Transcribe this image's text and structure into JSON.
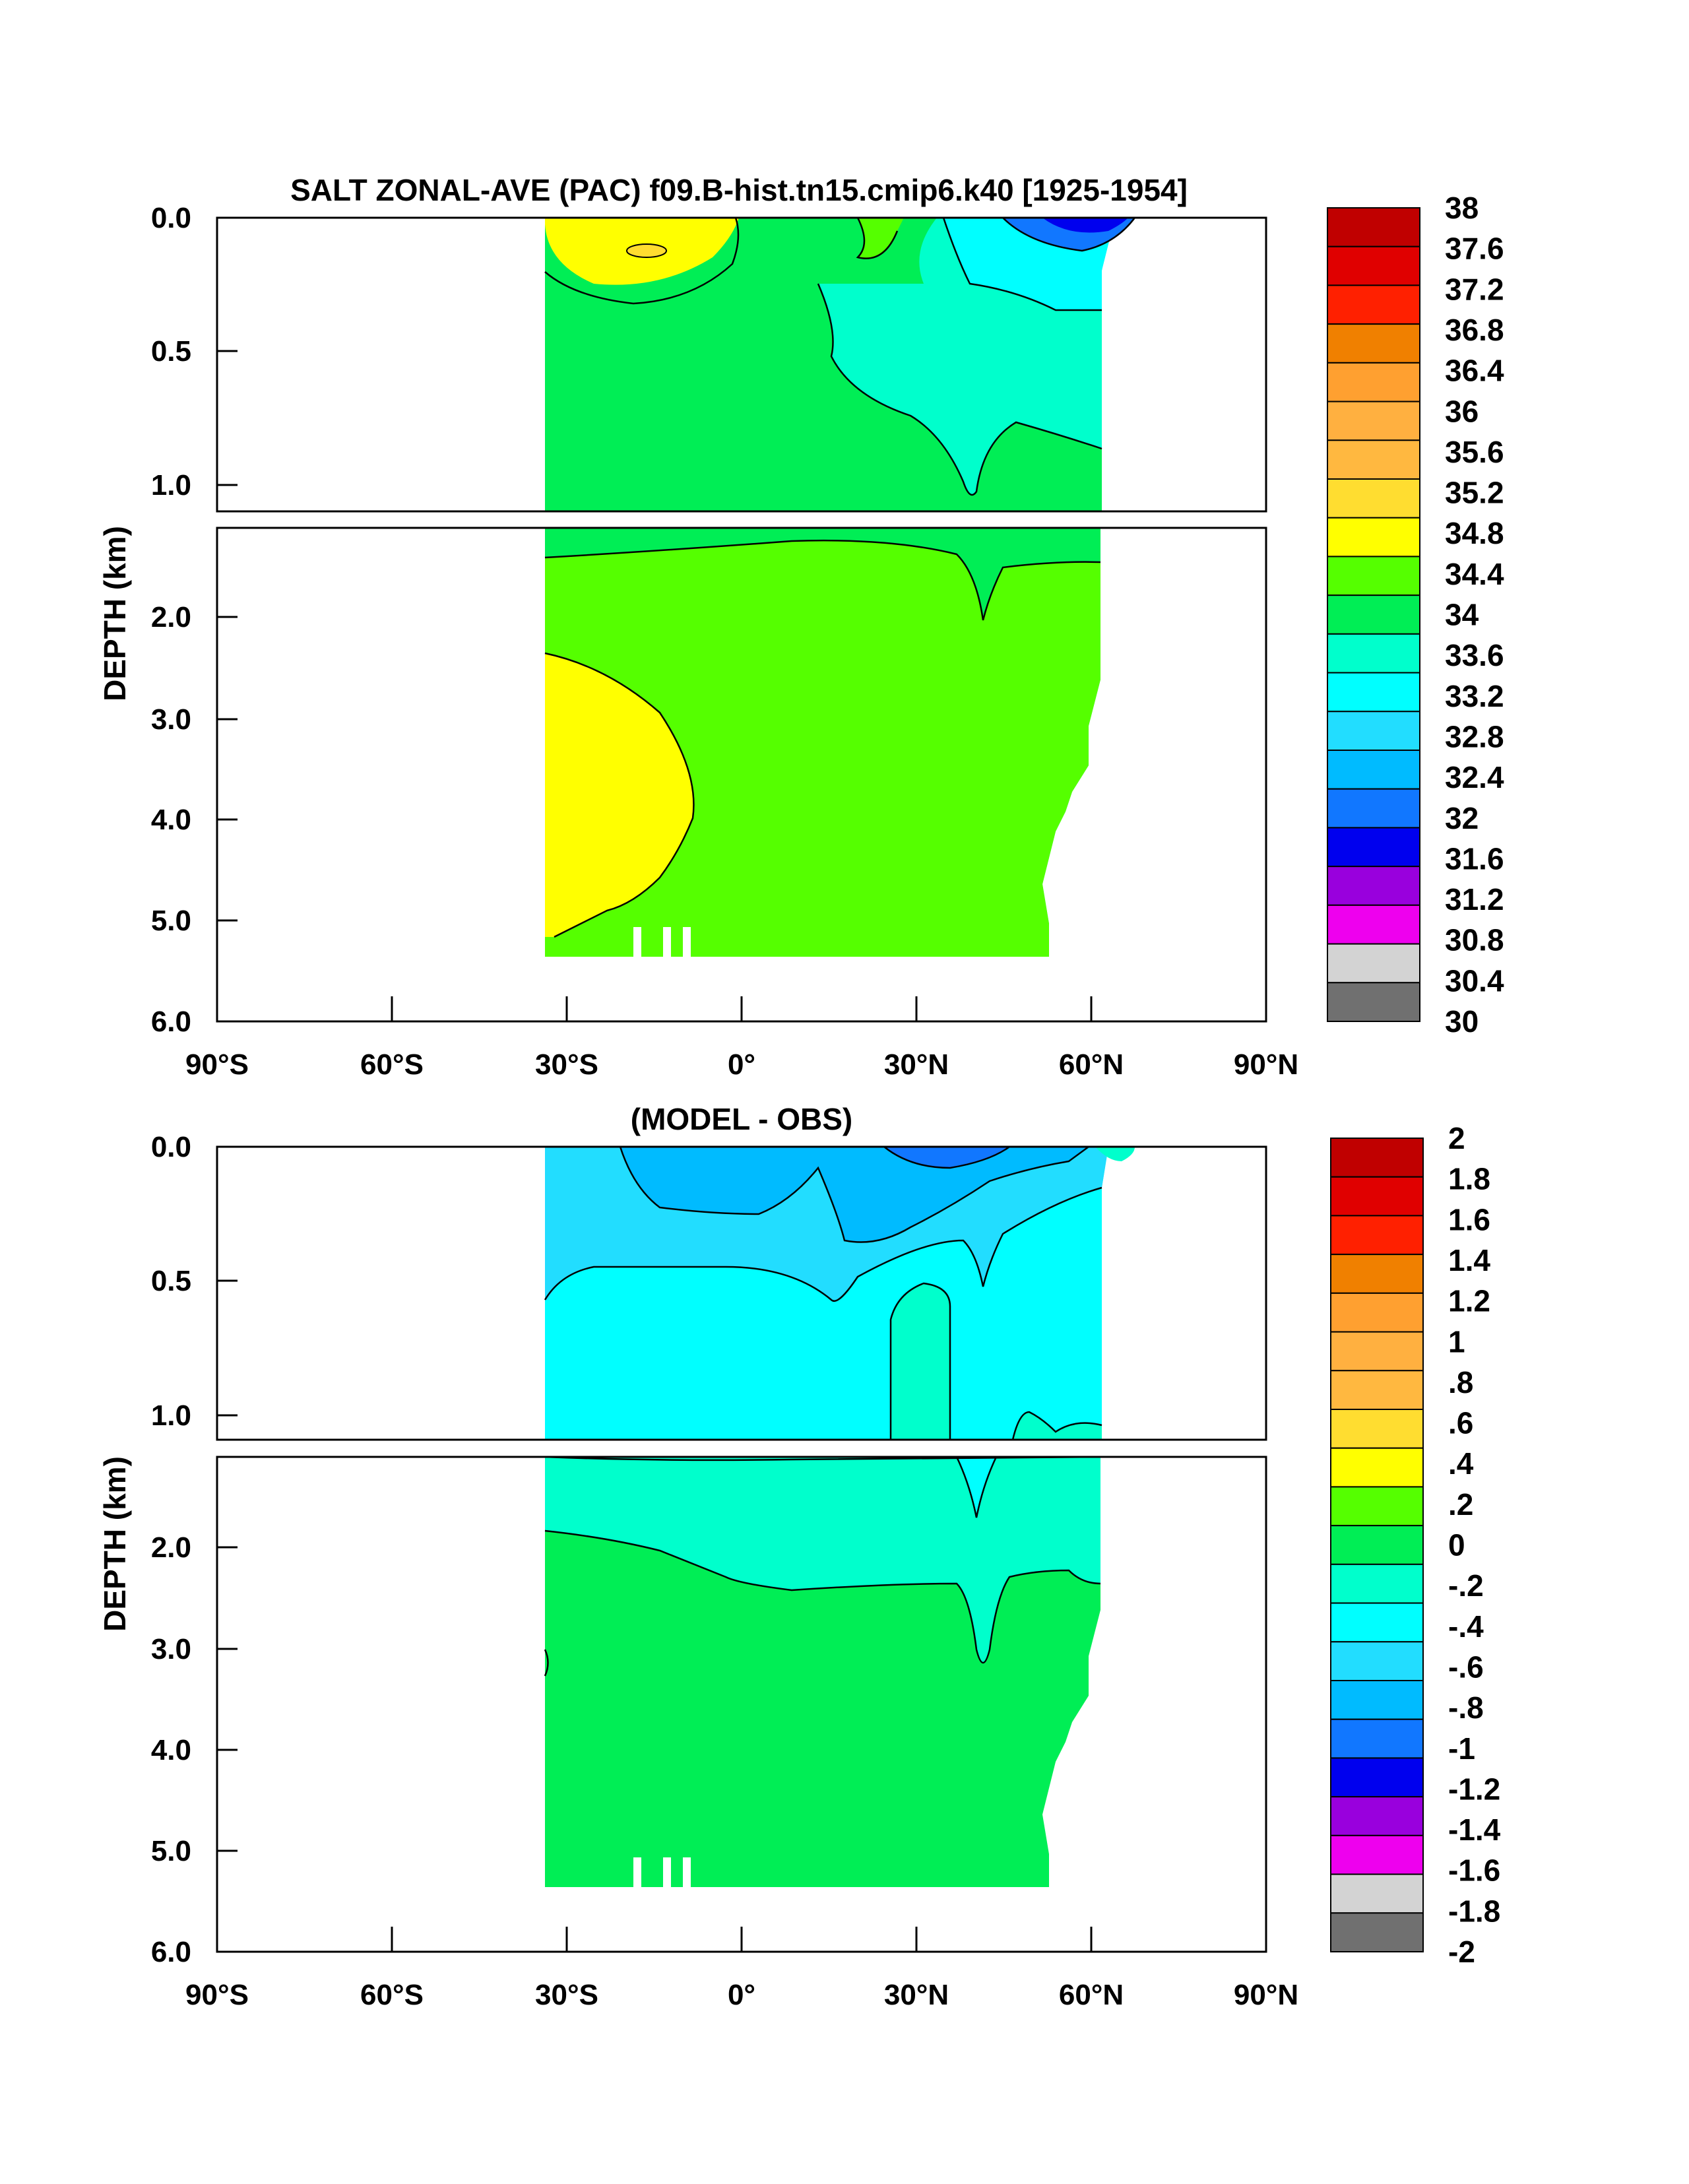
{
  "chart_data": [
    {
      "type": "heatmap",
      "title": "SALT ZONAL-AVE (PAC) f09.B-hist.tn15.cmip6.k40 [1925-1954]",
      "xlabel": "",
      "ylabel": "DEPTH (km)",
      "x_ticks": [
        "90°S",
        "60°S",
        "30°S",
        "0°",
        "30°N",
        "60°N",
        "90°N"
      ],
      "y_ticks_upper": [
        "0.0",
        "0.5",
        "1.0"
      ],
      "y_ticks_lower": [
        "2.0",
        "3.0",
        "4.0",
        "5.0",
        "6.0"
      ],
      "colorbar": {
        "labels": [
          "38",
          "37.6",
          "37.2",
          "36.8",
          "36.4",
          "36",
          "35.6",
          "35.2",
          "34.8",
          "34.4",
          "34",
          "33.6",
          "33.2",
          "32.8",
          "32.4",
          "32",
          "31.6",
          "31.2",
          "30.8",
          "30.4",
          "30"
        ],
        "colors": [
          "#c00000",
          "#e00000",
          "#ff2000",
          "#f08000",
          "#ffa030",
          "#ffb040",
          "#ffb840",
          "#ffdd30",
          "#ffff00",
          "#55ff00",
          "#00ee55",
          "#00ffcc",
          "#00ffff",
          "#22ddff",
          "#00bbff",
          "#1177ff",
          "#0000ee",
          "#9900dd",
          "#ee00ee",
          "#d3d3d3",
          "#707070"
        ]
      },
      "colors": {
        "ocean_fill": "#55ff00",
        "upper_fill": "#00ee55",
        "deep_south_fill": "#ffff00",
        "north_upper": "#00ffcc",
        "north_surface": "#00ffff",
        "fresh_surface": "#1177ff",
        "salty_south": "#ffff00"
      }
    },
    {
      "type": "heatmap",
      "title": "(MODEL - OBS)",
      "xlabel": "",
      "ylabel": "DEPTH (km)",
      "x_ticks": [
        "90°S",
        "60°S",
        "30°S",
        "0°",
        "30°N",
        "60°N",
        "90°N"
      ],
      "y_ticks_upper": [
        "0.0",
        "0.5",
        "1.0"
      ],
      "y_ticks_lower": [
        "2.0",
        "3.0",
        "4.0",
        "5.0",
        "6.0"
      ],
      "colorbar": {
        "labels": [
          "2",
          "1.8",
          "1.6",
          "1.4",
          "1.2",
          "1",
          ".8",
          ".6",
          ".4",
          ".2",
          "0",
          "-.2",
          "-.4",
          "-.6",
          "-.8",
          "-1",
          "-1.2",
          "-1.4",
          "-1.6",
          "-1.8",
          "-2"
        ],
        "colors": [
          "#c00000",
          "#e00000",
          "#ff2000",
          "#f08000",
          "#ffa030",
          "#ffb040",
          "#ffb840",
          "#ffdd30",
          "#ffff00",
          "#55ff00",
          "#00ee55",
          "#00ffcc",
          "#00ffff",
          "#22ddff",
          "#00bbff",
          "#1177ff",
          "#0000ee",
          "#9900dd",
          "#ee00ee",
          "#d3d3d3",
          "#707070"
        ]
      },
      "colors": {
        "deep_fill": "#00ee55",
        "mid_fill": "#00ffcc",
        "upper_fill": "#00ffff",
        "surface_fill": "#22ddff",
        "surface_low": "#00bbff"
      }
    }
  ]
}
